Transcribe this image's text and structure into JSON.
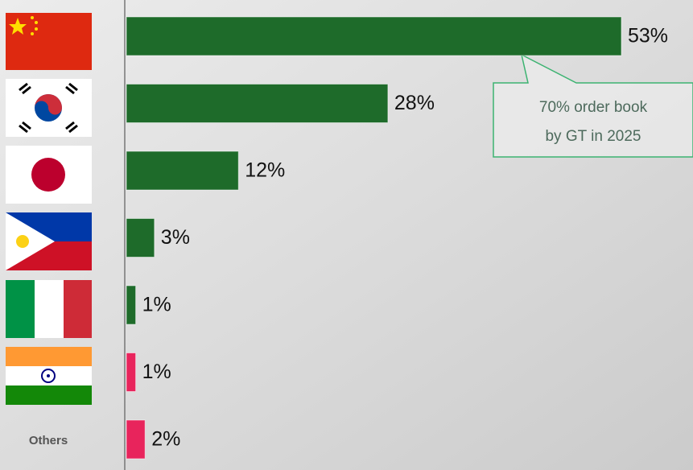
{
  "chart_data": {
    "type": "bar",
    "orientation": "horizontal",
    "categories": [
      null,
      null,
      null,
      null,
      null,
      null,
      "Others"
    ],
    "values": [
      53,
      28,
      12,
      3,
      1,
      1,
      2
    ],
    "value_labels": [
      "53%",
      "28%",
      "12%",
      "3%",
      "1%",
      "1%",
      "2%"
    ],
    "colors": [
      "#1e6b2a",
      "#1e6b2a",
      "#1e6b2a",
      "#1e6b2a",
      "#1e6b2a",
      "#e8245c",
      "#e8245c"
    ],
    "annotation": [
      "70% order book",
      "by GT in 2025"
    ]
  }
}
